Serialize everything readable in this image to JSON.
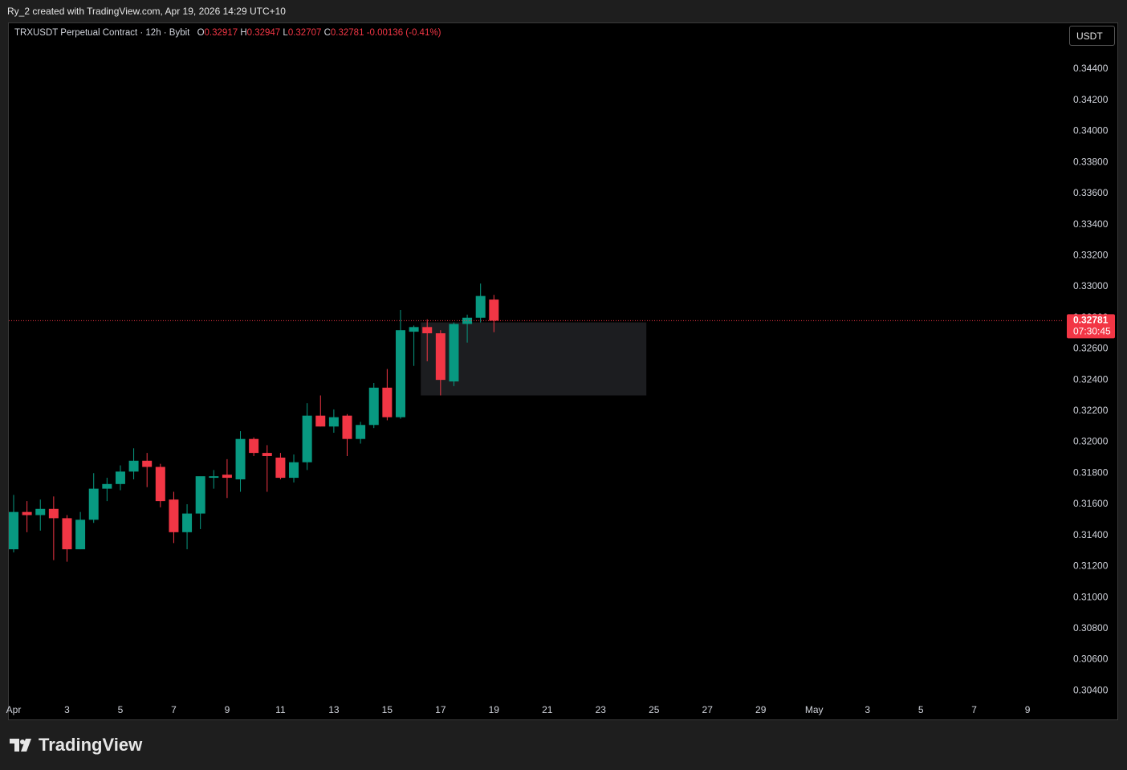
{
  "chart_data": {
    "type": "candlestick",
    "top_text": "Ry_2 created with TradingView.com, Apr 19, 2026 14:29 UTC+10",
    "title": "TRXUSDT Perpetual Contract · 12h · Bybit",
    "ohlc_letters": [
      "O",
      "H",
      "L",
      "C"
    ],
    "change": -0.00136,
    "change_pct_label": "(-0.41%)",
    "currency": "USDT",
    "countdown": "07:30:45",
    "brand": "TradingView",
    "up_color": "#089981",
    "down_color": "#f23645",
    "ohlc": [
      [
        0.3131,
        0.3166,
        0.3129,
        0.3155
      ],
      [
        0.3155,
        0.3162,
        0.3142,
        0.3153
      ],
      [
        0.3153,
        0.3163,
        0.3143,
        0.3157
      ],
      [
        0.3157,
        0.3165,
        0.3124,
        0.3151
      ],
      [
        0.3151,
        0.3153,
        0.3123,
        0.3131
      ],
      [
        0.3131,
        0.3155,
        0.3131,
        0.315
      ],
      [
        0.315,
        0.318,
        0.3148,
        0.317
      ],
      [
        0.317,
        0.3177,
        0.3162,
        0.3173
      ],
      [
        0.3173,
        0.3185,
        0.3169,
        0.3181
      ],
      [
        0.3181,
        0.3196,
        0.3176,
        0.3188
      ],
      [
        0.3188,
        0.3193,
        0.3171,
        0.3184
      ],
      [
        0.3184,
        0.3186,
        0.3158,
        0.3162
      ],
      [
        0.3163,
        0.3168,
        0.3135,
        0.3142
      ],
      [
        0.3142,
        0.316,
        0.3131,
        0.3154
      ],
      [
        0.3154,
        0.3177,
        0.3144,
        0.3178
      ],
      [
        0.3177,
        0.3182,
        0.317,
        0.3178
      ],
      [
        0.3179,
        0.3189,
        0.3164,
        0.3177
      ],
      [
        0.3176,
        0.3207,
        0.3168,
        0.3202
      ],
      [
        0.3202,
        0.3203,
        0.3191,
        0.3193
      ],
      [
        0.3193,
        0.3198,
        0.3168,
        0.3191
      ],
      [
        0.319,
        0.3193,
        0.3176,
        0.3177
      ],
      [
        0.3177,
        0.3192,
        0.3174,
        0.3187
      ],
      [
        0.3187,
        0.3225,
        0.3182,
        0.3217
      ],
      [
        0.3217,
        0.323,
        0.321,
        0.321
      ],
      [
        0.321,
        0.3221,
        0.3206,
        0.3216
      ],
      [
        0.3217,
        0.3218,
        0.3191,
        0.3202
      ],
      [
        0.3202,
        0.3213,
        0.3199,
        0.3211
      ],
      [
        0.3211,
        0.3238,
        0.3209,
        0.3235
      ],
      [
        0.3235,
        0.3247,
        0.3214,
        0.3216
      ],
      [
        0.3216,
        0.3285,
        0.3215,
        0.3272
      ],
      [
        0.3271,
        0.3275,
        0.3249,
        0.3274
      ],
      [
        0.3274,
        0.3279,
        0.3252,
        0.327
      ],
      [
        0.327,
        0.3272,
        0.323,
        0.324
      ],
      [
        0.3239,
        0.3277,
        0.3236,
        0.3276
      ],
      [
        0.3276,
        0.3282,
        0.3264,
        0.328
      ],
      [
        0.328,
        0.3302,
        0.3277,
        0.3294
      ],
      [
        0.32917,
        0.32947,
        0.32707,
        0.32781
      ]
    ],
    "zone": {
      "top": 0.3277,
      "bottom": 0.323
    },
    "xticks": [
      "Apr",
      "3",
      "5",
      "7",
      "9",
      "11",
      "13",
      "15",
      "17",
      "19",
      "21",
      "23",
      "25",
      "27",
      "29",
      "May",
      "3",
      "5",
      "7",
      "9"
    ],
    "ylim": [
      0.3021,
      0.347
    ],
    "yticks": [
      {
        "value": 0.304,
        "label": "0.30400"
      },
      {
        "value": 0.306,
        "label": "0.30600"
      },
      {
        "value": 0.308,
        "label": "0.30800"
      },
      {
        "value": 0.31,
        "label": "0.31000"
      },
      {
        "value": 0.312,
        "label": "0.31200"
      },
      {
        "value": 0.314,
        "label": "0.31400"
      },
      {
        "value": 0.316,
        "label": "0.31600"
      },
      {
        "value": 0.318,
        "label": "0.31800"
      },
      {
        "value": 0.32,
        "label": "0.32000"
      },
      {
        "value": 0.322,
        "label": "0.32200"
      },
      {
        "value": 0.324,
        "label": "0.32400"
      },
      {
        "value": 0.326,
        "label": "0.32600"
      },
      {
        "value": 0.328,
        "label": "0.32800"
      },
      {
        "value": 0.33,
        "label": "0.33000"
      },
      {
        "value": 0.332,
        "label": "0.33200"
      },
      {
        "value": 0.334,
        "label": "0.33400"
      },
      {
        "value": 0.336,
        "label": "0.33600"
      },
      {
        "value": 0.338,
        "label": "0.33800"
      },
      {
        "value": 0.34,
        "label": "0.34000"
      },
      {
        "value": 0.342,
        "label": "0.34200"
      },
      {
        "value": 0.344,
        "label": "0.34400"
      }
    ]
  }
}
